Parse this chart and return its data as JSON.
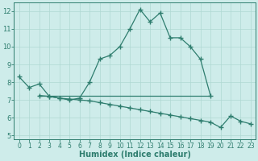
{
  "line1_x": [
    0,
    1,
    2,
    3,
    4,
    5,
    6,
    7,
    8,
    9,
    10,
    11,
    12,
    13,
    14,
    15,
    16,
    17,
    18,
    19
  ],
  "line1_y": [
    8.3,
    7.7,
    7.9,
    7.2,
    7.1,
    7.0,
    7.1,
    8.0,
    9.3,
    9.5,
    10.0,
    11.0,
    12.1,
    11.4,
    11.9,
    10.5,
    10.5,
    10.0,
    9.3,
    7.25
  ],
  "line2_x": [
    2,
    3,
    4,
    5,
    6,
    7,
    8,
    9,
    10,
    11,
    12,
    13,
    14,
    15,
    16,
    17,
    18,
    19,
    20,
    21,
    22,
    23
  ],
  "line2_y": [
    7.25,
    7.2,
    7.1,
    7.05,
    7.0,
    6.95,
    6.85,
    6.75,
    6.65,
    6.55,
    6.45,
    6.35,
    6.25,
    6.15,
    6.05,
    5.95,
    5.85,
    5.75,
    5.45,
    6.1,
    5.8,
    5.65
  ],
  "line3_x": [
    2,
    19
  ],
  "line3_y": [
    7.25,
    7.25
  ],
  "line_color": "#2e7d6e",
  "bg_color": "#ceecea",
  "grid_color": "#afd8d3",
  "xlabel": "Humidex (Indice chaleur)",
  "xlim": [
    -0.5,
    23.5
  ],
  "ylim": [
    4.8,
    12.5
  ],
  "yticks": [
    5,
    6,
    7,
    8,
    9,
    10,
    11,
    12
  ],
  "xticks": [
    0,
    1,
    2,
    3,
    4,
    5,
    6,
    7,
    8,
    9,
    10,
    11,
    12,
    13,
    14,
    15,
    16,
    17,
    18,
    19,
    20,
    21,
    22,
    23
  ]
}
